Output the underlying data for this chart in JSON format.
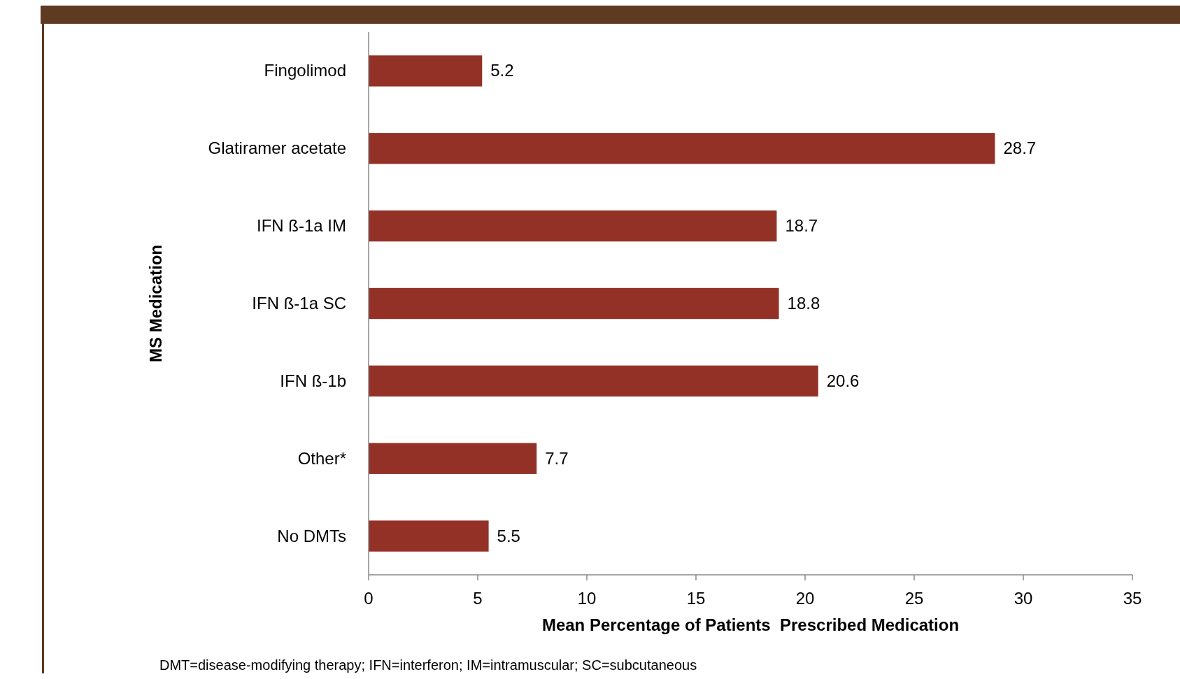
{
  "chart_data": {
    "type": "bar",
    "orientation": "horizontal",
    "categories": [
      "Fingolimod",
      "Glatiramer acetate",
      "IFN ß-1a IM",
      "IFN ß-1a SC",
      "IFN ß-1b",
      "Other*",
      "No DMTs"
    ],
    "values": [
      5.2,
      28.7,
      18.7,
      18.8,
      20.6,
      7.7,
      5.5
    ],
    "color": "#943126",
    "xlim": [
      0,
      35
    ],
    "xticks": [
      0,
      5,
      10,
      15,
      20,
      25,
      30,
      35
    ],
    "xlabel": "Mean Percentage of Patients  Prescribed Medication",
    "ylabel": "MS Medication",
    "data_labels": true,
    "grid": false,
    "annotations": [
      "DMT=disease-modifying therapy; IFN=interferon; IM=intramuscular; SC=subcutaneous"
    ]
  }
}
